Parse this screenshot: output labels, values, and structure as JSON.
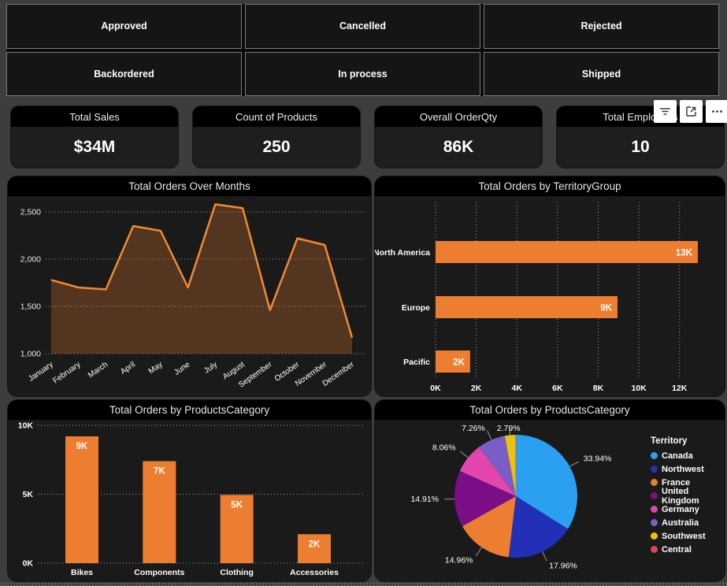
{
  "colors": {
    "orange": "#ED7D31",
    "line_orange": "#F08A33",
    "page_bg": "#3d3d3d",
    "card_bg": "#1a1a1a",
    "title_bg": "#000000"
  },
  "slicers": {
    "items": [
      "Approved",
      "Cancelled",
      "Rejected",
      "Backordered",
      "In process",
      "Shipped"
    ]
  },
  "kpis": [
    {
      "title": "Total Sales",
      "value": "$34M"
    },
    {
      "title": "Count of Products",
      "value": "250"
    },
    {
      "title": "Overall OrderQty",
      "value": "86K"
    },
    {
      "title": "Total Employees",
      "value": "10"
    }
  ],
  "visual_toolbar": {
    "icons": [
      "filter-icon",
      "focus-mode-icon",
      "more-options-icon"
    ]
  },
  "chart_data": [
    {
      "type": "area",
      "title": "Total Orders Over Months",
      "x": [
        "January",
        "February",
        "March",
        "April",
        "May",
        "June",
        "July",
        "August",
        "September",
        "October",
        "November",
        "December"
      ],
      "values": [
        1780,
        1700,
        1680,
        2350,
        2300,
        1700,
        2580,
        2540,
        1460,
        2220,
        2150,
        1170
      ],
      "ylim": [
        1000,
        2600
      ],
      "yticks": [
        1000,
        1500,
        2000,
        2500
      ],
      "ytick_labels": [
        "1,000",
        "1,500",
        "2,000",
        "2,500"
      ],
      "grid": "horizontal-dotted",
      "line_color": "#F08A33",
      "fill_color": "rgba(237,125,49,0.28)"
    },
    {
      "type": "bar-horizontal",
      "title": "Total Orders by TerritoryGroup",
      "categories": [
        "North America",
        "Europe",
        "Pacific"
      ],
      "values": [
        12900,
        8950,
        1700
      ],
      "data_labels": [
        "13K",
        "9K",
        "2K"
      ],
      "xlim": [
        0,
        13600
      ],
      "xticks": [
        0,
        2000,
        4000,
        6000,
        8000,
        10000,
        12000
      ],
      "xtick_labels": [
        "0K",
        "2K",
        "4K",
        "6K",
        "8K",
        "10K",
        "12K"
      ],
      "grid": "vertical-dotted",
      "bar_color": "#ED7D31"
    },
    {
      "type": "bar",
      "title": "Total Orders by ProductsCategory",
      "categories": [
        "Bikes",
        "Components",
        "Clothing",
        "Accessories"
      ],
      "values": [
        9200,
        7400,
        4950,
        2100
      ],
      "data_labels": [
        "9K",
        "7K",
        "5K",
        "2K"
      ],
      "ylim": [
        0,
        10000
      ],
      "yticks": [
        0,
        5000,
        10000
      ],
      "ytick_labels": [
        "0K",
        "5K",
        "10K"
      ],
      "grid": "horizontal-dotted",
      "bar_color": "#ED7D31"
    },
    {
      "type": "pie",
      "title": "Total Orders by ProductsCategory",
      "legend_title": "Territory",
      "legend_position": "right",
      "slices": [
        {
          "label": "Canada",
          "pct": 33.94,
          "pct_label": "33.94%",
          "color": "#2BA0F0"
        },
        {
          "label": "Northwest",
          "pct": 17.96,
          "pct_label": "17.96%",
          "color": "#2230B8"
        },
        {
          "label": "France",
          "pct": 14.96,
          "pct_label": "14.96%",
          "color": "#ED7D31"
        },
        {
          "label": "United Kingdom",
          "pct": 14.91,
          "pct_label": "14.91%",
          "color": "#7B0D87"
        },
        {
          "label": "Germany",
          "pct": 8.06,
          "pct_label": "8.06%",
          "color": "#E246AC"
        },
        {
          "label": "Australia",
          "pct": 7.26,
          "pct_label": "7.26%",
          "color": "#7B5DC8"
        },
        {
          "label": "Southwest",
          "pct": 2.79,
          "pct_label": "2.79%",
          "color": "#E9C310"
        },
        {
          "label": "Central",
          "pct": 0.12,
          "pct_label": "",
          "color": "#E04459"
        }
      ]
    }
  ]
}
